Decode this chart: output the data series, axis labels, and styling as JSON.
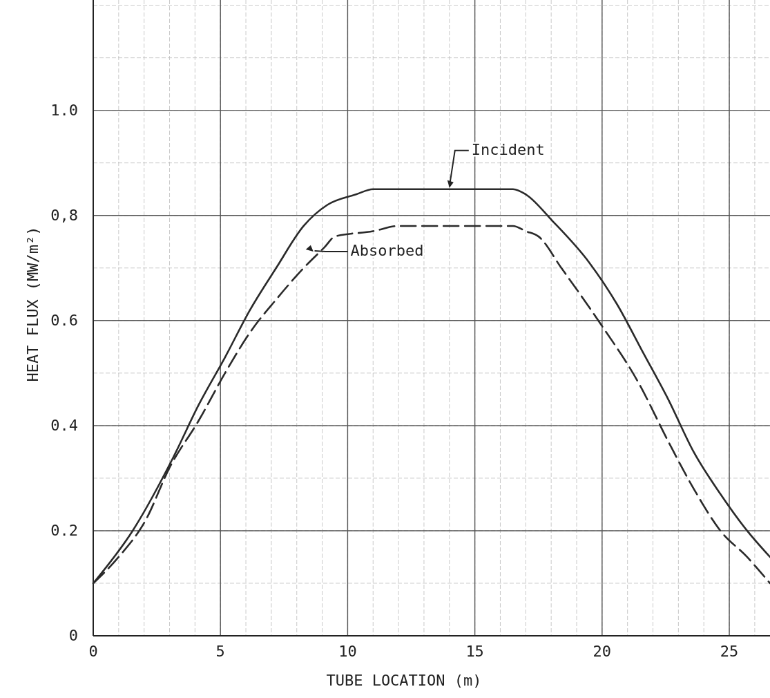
{
  "chart_data": {
    "type": "line",
    "xlabel": "TUBE LOCATION (m)",
    "ylabel": "HEAT FLUX (MW/m²)",
    "xlim": [
      0,
      26.6
    ],
    "ylim": [
      0,
      1.21
    ],
    "xticks": [
      0,
      5,
      10,
      15,
      20,
      25
    ],
    "yticks": [
      0,
      0.2,
      0.4,
      0.6,
      {
        "value": 0.8,
        "label": "0,8"
      },
      {
        "value": 1.0,
        "label": "1.0"
      }
    ],
    "grid": true,
    "series": [
      {
        "color": "#2a2a2a",
        "line_style": "solid",
        "x": [
          0,
          1.55,
          3.15,
          4.15,
          5.18,
          6.16,
          7.19,
          8.27,
          9.2,
          10.33,
          11,
          12,
          13,
          14,
          15,
          16,
          16.5,
          17,
          18.04,
          19.5,
          20.6,
          21.6,
          22.6,
          23.6,
          24.65,
          25.7,
          26.6
        ],
        "values": [
          0.1,
          0.2,
          0.34,
          0.44,
          0.53,
          0.62,
          0.7,
          0.78,
          0.82,
          0.84,
          0.85,
          0.85,
          0.85,
          0.85,
          0.85,
          0.85,
          0.85,
          0.84,
          0.79,
          0.71,
          0.63,
          0.54,
          0.45,
          0.35,
          0.27,
          0.2,
          0.15
        ]
      },
      {
        "color": "#2a2a2a",
        "line_style": "dashed",
        "x": [
          0,
          1,
          2.06,
          3,
          4.15,
          5.18,
          6.2,
          7.19,
          8.27,
          9.1,
          9.5,
          11,
          12,
          13,
          14,
          15,
          16,
          16.5,
          17,
          17.5,
          18.4,
          19.85,
          21.45,
          22.6,
          23.6,
          24.65,
          25.7,
          26.6
        ],
        "values": [
          0.1,
          0.15,
          0.22,
          0.32,
          0.41,
          0.5,
          0.58,
          0.64,
          0.7,
          0.74,
          0.76,
          0.77,
          0.78,
          0.78,
          0.78,
          0.78,
          0.78,
          0.78,
          0.77,
          0.76,
          0.7,
          0.6,
          0.48,
          0.37,
          0.28,
          0.2,
          0.15,
          0.1
        ]
      }
    ],
    "annotations": [
      {
        "text": "Incident",
        "x": 14,
        "y": 0.85
      },
      {
        "text": "Absorbed",
        "x": 8.7,
        "y": 0.73
      }
    ]
  }
}
